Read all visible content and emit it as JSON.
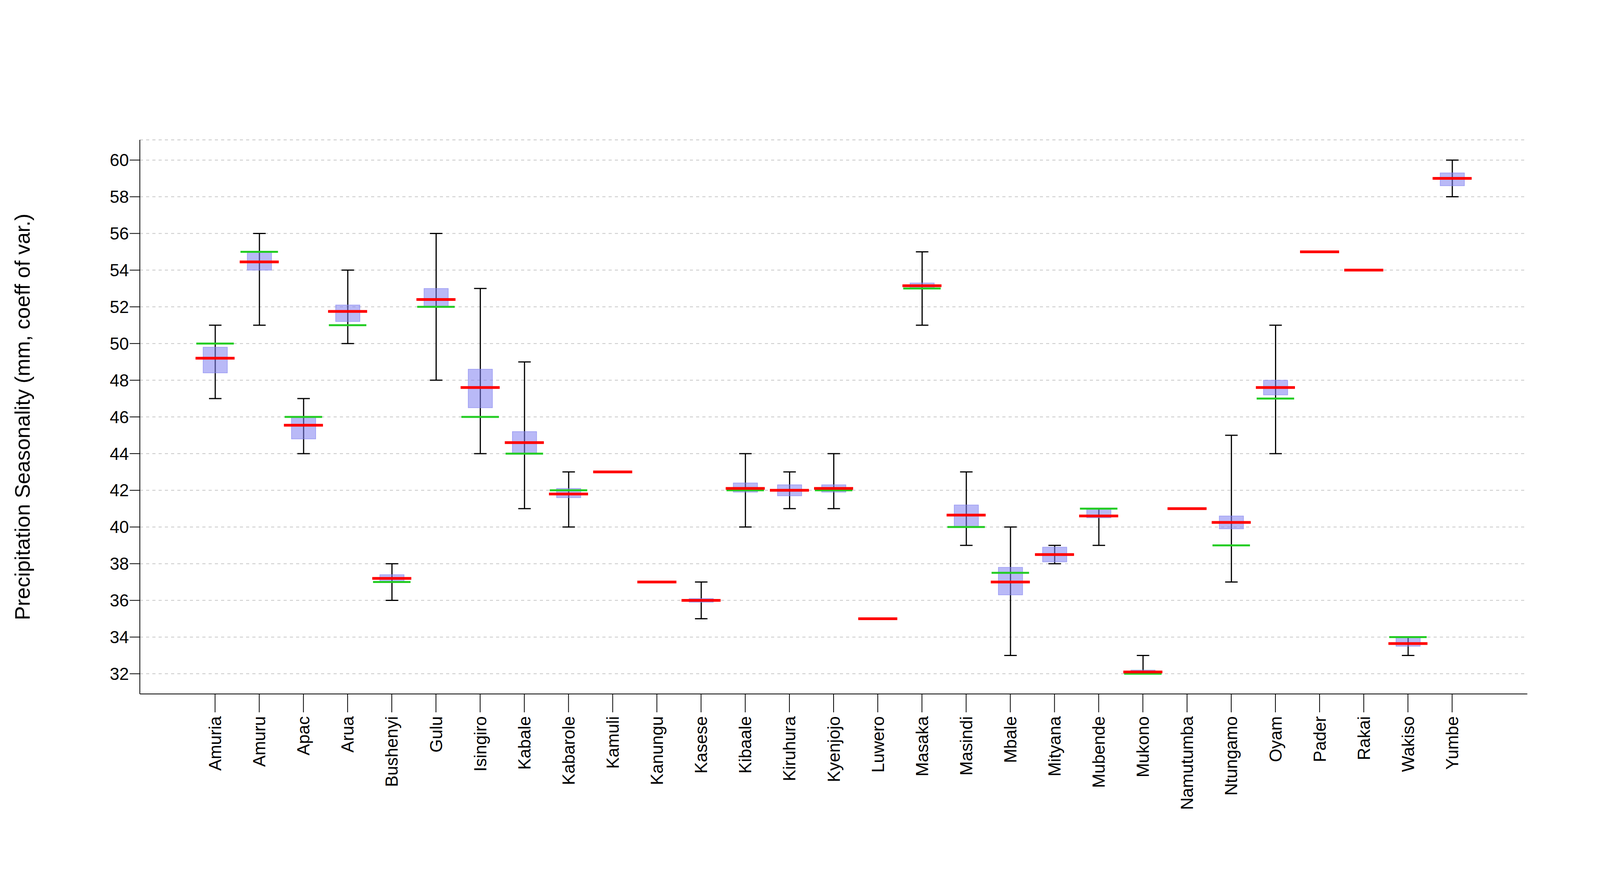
{
  "chart_data": {
    "type": "violin",
    "ylabel": "Precipitation Seasonality (mm, coeff of var.)",
    "categories": [
      "Amuria",
      "Amuru",
      "Apac",
      "Arua",
      "Bushenyi",
      "Gulu",
      "Isingiro",
      "Kabale",
      "Kabarole",
      "Kamuli",
      "Kanungu",
      "Kasese",
      "Kibaale",
      "Kiruhura",
      "Kyenjojo",
      "Luwero",
      "Masaka",
      "Masindi",
      "Mbale",
      "Mityana",
      "Mubende",
      "Mukono",
      "Namutumba",
      "Ntungamo",
      "Oyam",
      "Pader",
      "Rakai",
      "Wakiso",
      "Yumbe"
    ],
    "series": [
      {
        "type": "range",
        "color": "#000000",
        "values": [
          [
            47,
            51
          ],
          [
            51,
            56
          ],
          [
            44,
            47
          ],
          [
            50,
            54
          ],
          [
            36,
            38
          ],
          [
            48,
            56
          ],
          [
            44,
            53
          ],
          [
            41,
            49
          ],
          [
            40,
            43
          ],
          [
            43,
            43
          ],
          [
            37,
            37
          ],
          [
            35,
            37
          ],
          [
            40,
            44
          ],
          [
            41,
            43
          ],
          [
            41,
            44
          ],
          [
            35,
            35
          ],
          [
            51,
            55
          ],
          [
            39,
            43
          ],
          [
            33,
            40
          ],
          [
            38,
            39
          ],
          [
            39,
            41
          ],
          [
            32,
            33
          ],
          [
            41,
            41
          ],
          [
            37,
            45
          ],
          [
            44,
            51
          ],
          [
            55,
            55
          ],
          [
            54,
            54
          ],
          [
            33,
            34
          ],
          [
            58,
            60
          ]
        ]
      },
      {
        "type": "box",
        "color": "#8080f0",
        "values": [
          [
            48.4,
            49.8
          ],
          [
            54,
            55
          ],
          [
            44.8,
            46
          ],
          [
            51.2,
            52.1
          ],
          [
            37,
            37.4
          ],
          [
            52,
            53
          ],
          [
            46.5,
            48.6
          ],
          [
            44,
            45.2
          ],
          [
            41.6,
            42.1
          ],
          [
            43,
            43
          ],
          [
            37,
            37
          ],
          [
            35.9,
            36.1
          ],
          [
            41.9,
            42.4
          ],
          [
            41.7,
            42.3
          ],
          [
            41.9,
            42.3
          ],
          [
            35,
            35
          ],
          [
            53,
            53.3
          ],
          [
            40,
            41.2
          ],
          [
            36.3,
            37.8
          ],
          [
            38.1,
            38.9
          ],
          [
            40.5,
            41
          ],
          [
            32,
            32.2
          ],
          [
            41,
            41
          ],
          [
            39.9,
            40.6
          ],
          [
            47.2,
            48
          ],
          [
            55,
            55
          ],
          [
            54,
            54
          ],
          [
            33.5,
            34
          ],
          [
            58.6,
            59.3
          ]
        ]
      },
      {
        "type": "median",
        "color": "#22cc22",
        "values": [
          50,
          55,
          46,
          51,
          37,
          52,
          46,
          44,
          42,
          43,
          37,
          36,
          42,
          42,
          42,
          35,
          53,
          40,
          37.5,
          38.5,
          41,
          32,
          41,
          39,
          47,
          55,
          54,
          34,
          59
        ]
      },
      {
        "type": "mean",
        "color": "#ff0000",
        "values": [
          49.2,
          54.45,
          45.55,
          51.75,
          37.2,
          52.4,
          47.6,
          44.6,
          41.8,
          43,
          37,
          36,
          42.1,
          42,
          42.1,
          35,
          53.15,
          40.65,
          37,
          38.5,
          40.6,
          32.1,
          41,
          40.25,
          47.6,
          55,
          54,
          33.65,
          59
        ]
      }
    ],
    "ylim": [
      30.9,
      61.1
    ],
    "yticks": [
      32,
      34,
      36,
      38,
      40,
      42,
      44,
      46,
      48,
      50,
      52,
      54,
      56,
      58,
      60
    ],
    "grid": true
  }
}
